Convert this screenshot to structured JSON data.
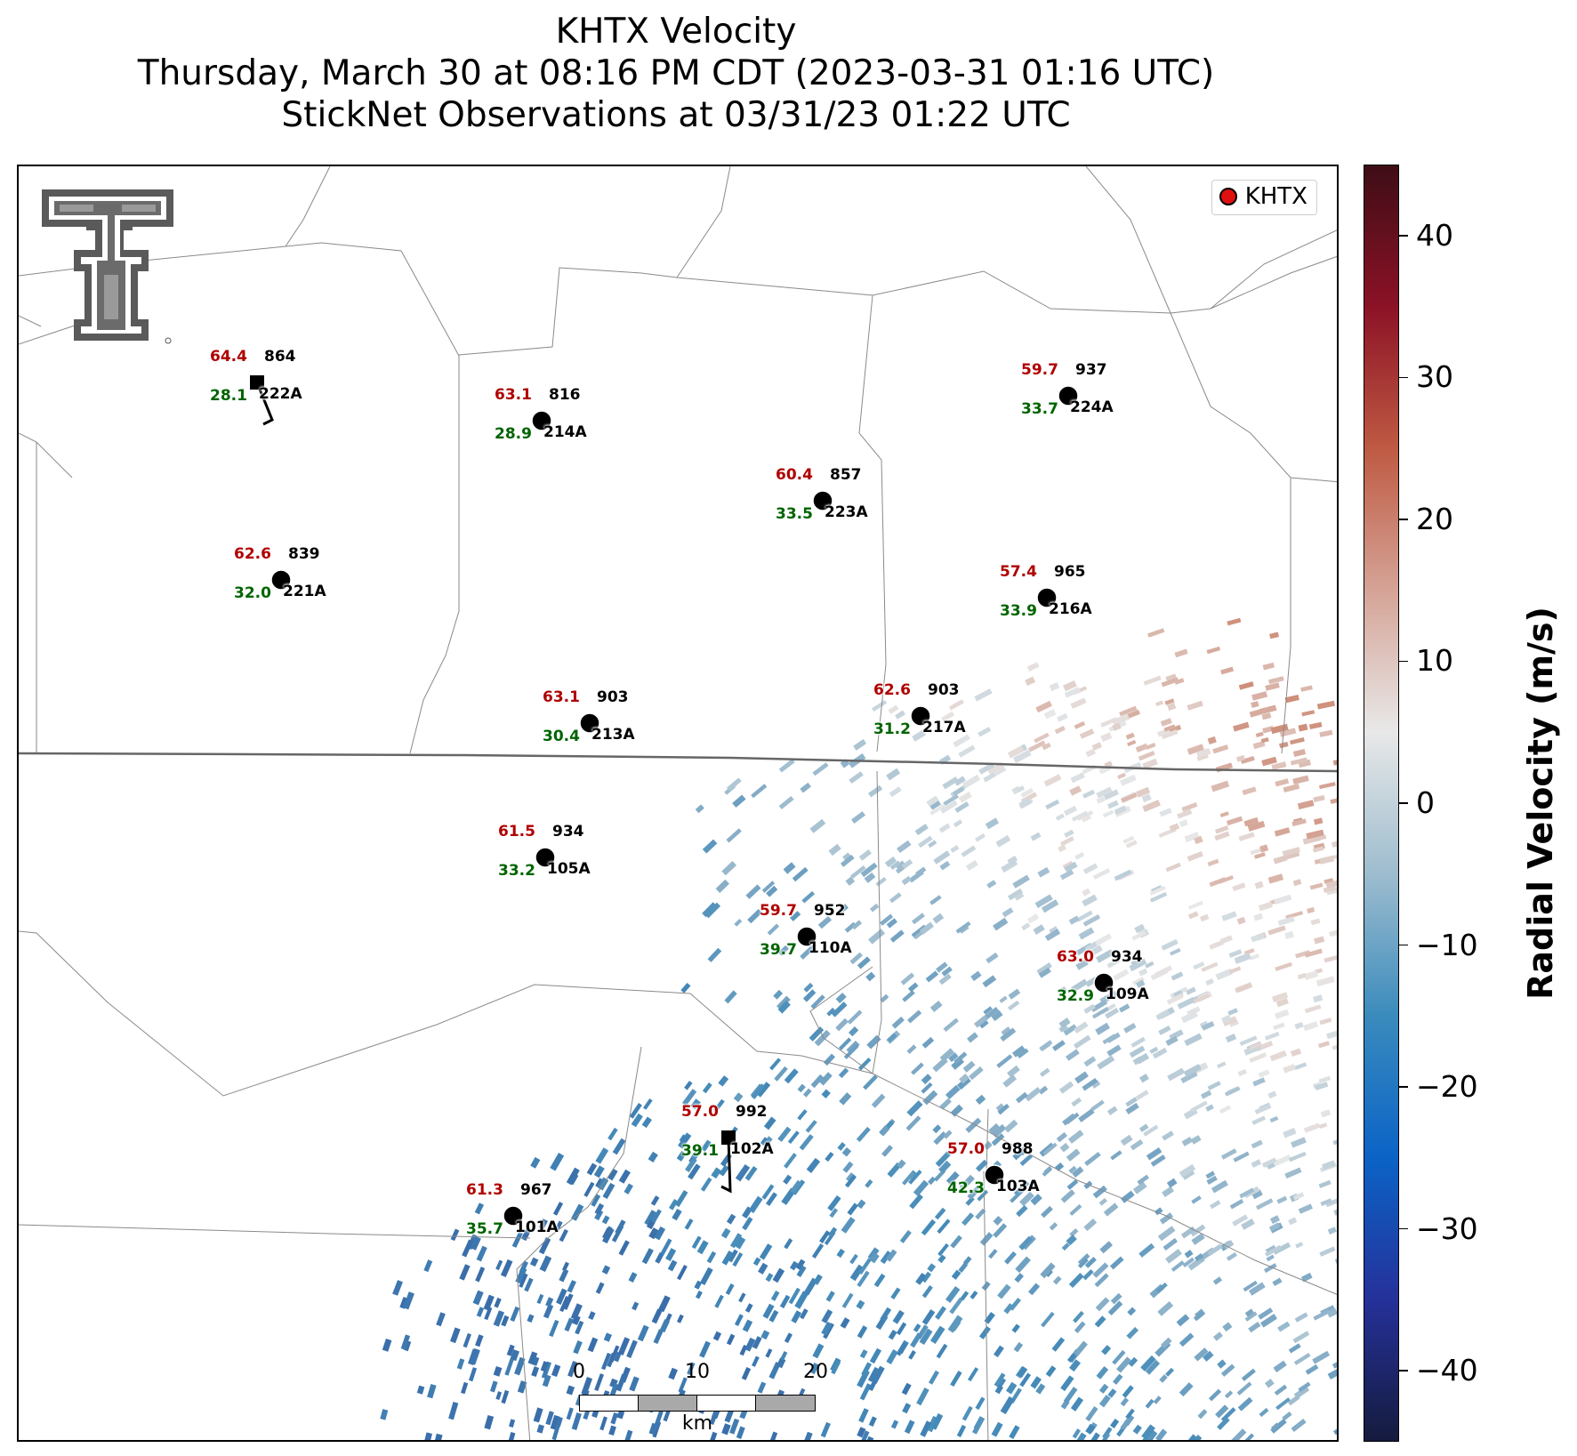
{
  "title": {
    "line1": "KHTX Velocity",
    "line2": "Thursday, March 30 at 08:16 PM CDT (2023-03-31 01:16 UTC)",
    "line3": "StickNet Observations at 03/31/23 01:22 UTC"
  },
  "legend": {
    "label": "KHTX",
    "marker_color": "#e01010"
  },
  "colorbar": {
    "title": "Radial Velocity (m/s)",
    "min": -45,
    "max": 45,
    "ticks": [
      "40",
      "30",
      "20",
      "10",
      "0",
      "−10",
      "−20",
      "−30",
      "−40"
    ],
    "tick_values": [
      40,
      30,
      20,
      10,
      0,
      -10,
      -20,
      -30,
      -40
    ],
    "colors": [
      "#151b3d",
      "#25319a",
      "#0b63c6",
      "#3a8bbd",
      "#9dbcce",
      "#e8e8e8",
      "#d5a396",
      "#bf5a43",
      "#8c1226",
      "#3e0d16"
    ]
  },
  "stations": [
    {
      "id": "222A",
      "temp": "64.4",
      "dew": "28.1",
      "pressure": "864",
      "marker": "square"
    },
    {
      "id": "214A",
      "temp": "63.1",
      "dew": "28.9",
      "pressure": "816",
      "marker": "circle"
    },
    {
      "id": "221A",
      "temp": "62.6",
      "dew": "32.0",
      "pressure": "839",
      "marker": "circle"
    },
    {
      "id": "223A",
      "temp": "60.4",
      "dew": "33.5",
      "pressure": "857",
      "marker": "circle"
    },
    {
      "id": "224A",
      "temp": "59.7",
      "dew": "33.7",
      "pressure": "937",
      "marker": "circle"
    },
    {
      "id": "216A",
      "temp": "57.4",
      "dew": "33.9",
      "pressure": "965",
      "marker": "circle"
    },
    {
      "id": "213A",
      "temp": "63.1",
      "dew": "30.4",
      "pressure": "903",
      "marker": "circle"
    },
    {
      "id": "217A",
      "temp": "62.6",
      "dew": "31.2",
      "pressure": "903",
      "marker": "circle"
    },
    {
      "id": "105A",
      "temp": "61.5",
      "dew": "33.2",
      "pressure": "934",
      "marker": "circle"
    },
    {
      "id": "110A",
      "temp": "59.7",
      "dew": "39.7",
      "pressure": "952",
      "marker": "circle"
    },
    {
      "id": "109A",
      "temp": "63.0",
      "dew": "32.9",
      "pressure": "934",
      "marker": "circle"
    },
    {
      "id": "102A",
      "temp": "57.0",
      "dew": "39.1",
      "pressure": "992",
      "marker": "square"
    },
    {
      "id": "103A",
      "temp": "57.0",
      "dew": "42.3",
      "pressure": "988",
      "marker": "circle"
    },
    {
      "id": "101A",
      "temp": "61.3",
      "dew": "35.7",
      "pressure": "967",
      "marker": "circle"
    }
  ],
  "scalebar": {
    "labels": [
      "0",
      "10",
      "20"
    ],
    "unit": "km"
  },
  "colors": {
    "temp_text": "#b00000",
    "dew_text": "#006400",
    "boundary": "#8a8a8a",
    "state_line": "#666666"
  }
}
